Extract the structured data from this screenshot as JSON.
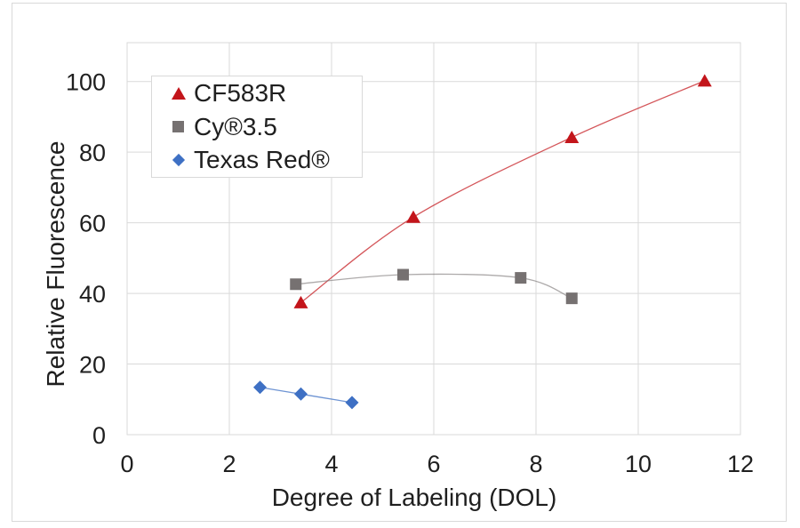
{
  "chart_data": {
    "type": "scatter",
    "title": "",
    "xlabel": "Degree of Labeling (DOL)",
    "ylabel": "Relative Fluorescence",
    "xlim": [
      0,
      12
    ],
    "ylim": [
      0,
      111
    ],
    "x_ticks": [
      0,
      2,
      4,
      6,
      8,
      10,
      12
    ],
    "y_ticks": [
      0,
      20,
      40,
      60,
      80,
      100
    ],
    "grid": true,
    "grid_color": "#d9d9d9",
    "legend_position": "top-left-inside",
    "series": [
      {
        "name": "CF583R",
        "marker": "triangle",
        "color": "#c3151b",
        "line_color": "rgba(195,21,27,0.72)",
        "points": [
          [
            3.4,
            37.4
          ],
          [
            5.6,
            61.6
          ],
          [
            8.7,
            84.2
          ],
          [
            11.3,
            100.2
          ]
        ]
      },
      {
        "name": "Cy®3.5",
        "marker": "square",
        "color": "#767171",
        "line_color": "rgba(118,113,113,0.6)",
        "points": [
          [
            3.3,
            42.6
          ],
          [
            5.4,
            45.3
          ],
          [
            7.7,
            44.4
          ],
          [
            8.7,
            38.6
          ]
        ]
      },
      {
        "name": "Texas Red®",
        "marker": "diamond",
        "color": "#3e70c4",
        "line_color": "rgba(62,112,196,0.75)",
        "points": [
          [
            2.6,
            13.4
          ],
          [
            3.4,
            11.5
          ],
          [
            4.4,
            9.1
          ]
        ]
      }
    ]
  }
}
